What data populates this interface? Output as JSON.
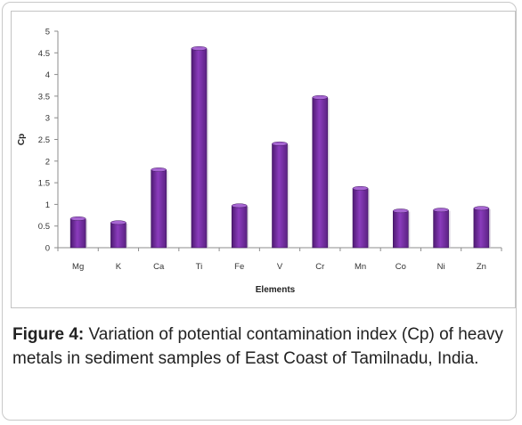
{
  "chart_data": {
    "type": "bar",
    "categories": [
      "Mg",
      "K",
      "Ca",
      "Ti",
      "Fe",
      "V",
      "Cr",
      "Mn",
      "Co",
      "Ni",
      "Zn"
    ],
    "values": [
      0.67,
      0.58,
      1.8,
      4.6,
      0.97,
      2.4,
      3.47,
      1.37,
      0.85,
      0.87,
      0.91
    ],
    "xlabel": "Elements",
    "ylabel": "Cp",
    "ylim": [
      0,
      5
    ],
    "yticks": [
      "0",
      "0.5",
      "1",
      "1.5",
      "2",
      "2.5",
      "3",
      "3.5",
      "4",
      "4.5",
      "5"
    ],
    "grid": false,
    "legend": "none",
    "bar_color": "#7b2fa6"
  },
  "caption": {
    "label": "Figure 4:",
    "text": " Variation of potential contamination index (Cp) of heavy metals in sediment samples of East Coast of Tamilnadu, India."
  }
}
